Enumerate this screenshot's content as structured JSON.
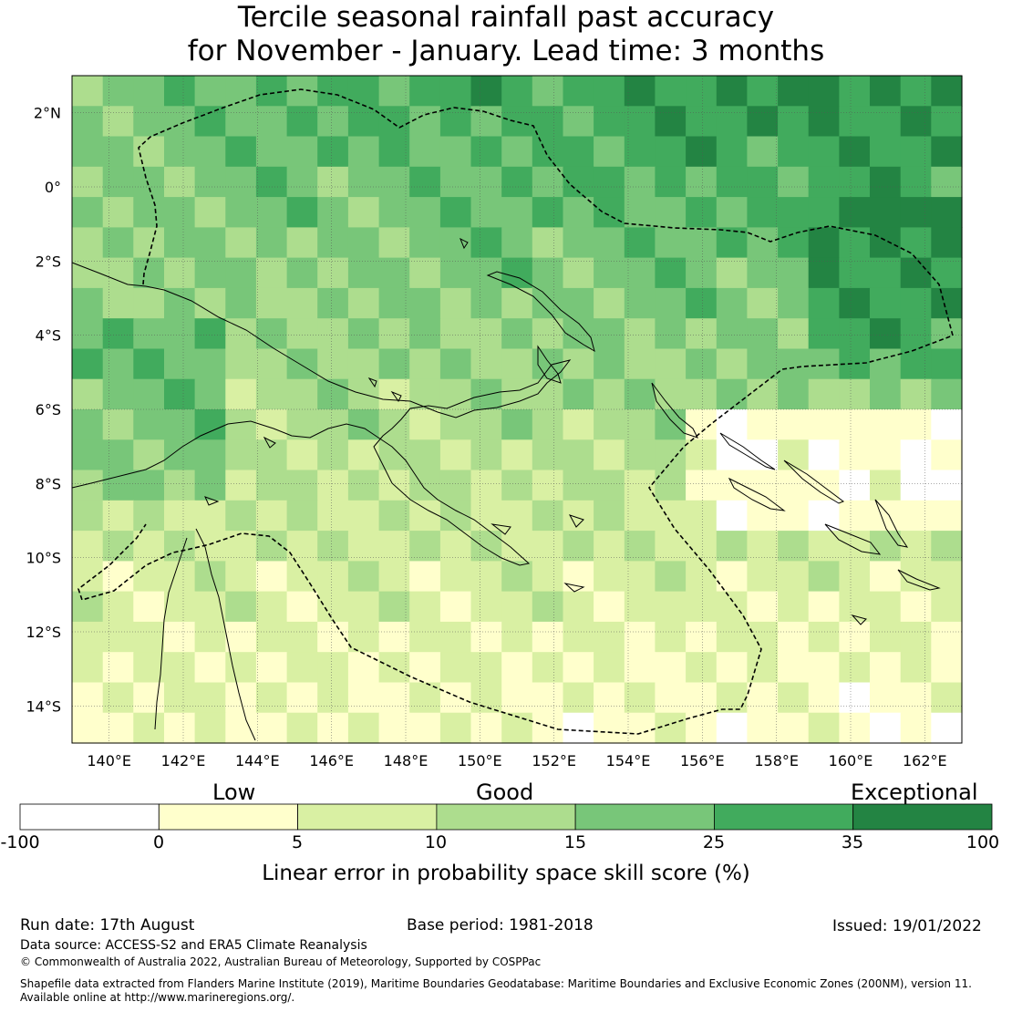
{
  "title_line1": "Tercile seasonal rainfall past accuracy",
  "title_line2": "for November - January. Lead time: 3 months",
  "map": {
    "lon_range": [
      139,
      163
    ],
    "lat_range": [
      -15,
      3
    ],
    "lon_ticks": [
      {
        "value": 140,
        "label": "140°E"
      },
      {
        "value": 142,
        "label": "142°E"
      },
      {
        "value": 144,
        "label": "144°E"
      },
      {
        "value": 146,
        "label": "146°E"
      },
      {
        "value": 148,
        "label": "148°E"
      },
      {
        "value": 150,
        "label": "150°E"
      },
      {
        "value": 152,
        "label": "152°E"
      },
      {
        "value": 154,
        "label": "154°E"
      },
      {
        "value": 156,
        "label": "156°E"
      },
      {
        "value": 158,
        "label": "158°E"
      },
      {
        "value": 160,
        "label": "160°E"
      },
      {
        "value": 162,
        "label": "162°E"
      }
    ],
    "lat_ticks": [
      {
        "value": 2,
        "label": "2°N"
      },
      {
        "value": 0,
        "label": "0°"
      },
      {
        "value": -2,
        "label": "2°S"
      },
      {
        "value": -4,
        "label": "4°S"
      },
      {
        "value": -6,
        "label": "6°S"
      },
      {
        "value": -8,
        "label": "8°S"
      },
      {
        "value": -10,
        "label": "10°S"
      },
      {
        "value": -12,
        "label": "12°S"
      },
      {
        "value": -14,
        "label": "14°S"
      }
    ],
    "grid": true
  },
  "colorbar": {
    "category_labels": [
      "Low",
      "Good",
      "Exceptional"
    ],
    "boundaries": [
      "-100",
      "0",
      "5",
      "10",
      "15",
      "25",
      "35",
      "100"
    ],
    "colors": [
      "#ffffff",
      "#ffffcc",
      "#d9f0a3",
      "#addd8e",
      "#78c679",
      "#41ab5d",
      "#238443"
    ],
    "title": "Linear error in probability space skill score (%)"
  },
  "footer": {
    "run_date": "Run date: 17th August",
    "base_period": "Base period: 1981-2018",
    "issued": "Issued: 19/01/2022",
    "data_source": "Data source: ACCESS-S2 and ERA5 Climate Reanalysis",
    "copyright": "© Commonwealth of Australia 2022, Australian Bureau of Meteorology, Supported by COSPPac",
    "shapefile_line1": "Shapefile data extracted from Flanders Marine Institute (2019), Maritime Boundaries Geodatabase: Maritime Boundaries and Exclusive Economic Zones (200NM), version 11.",
    "shapefile_line2": "Available online at http://www.marineregions.org/."
  }
}
